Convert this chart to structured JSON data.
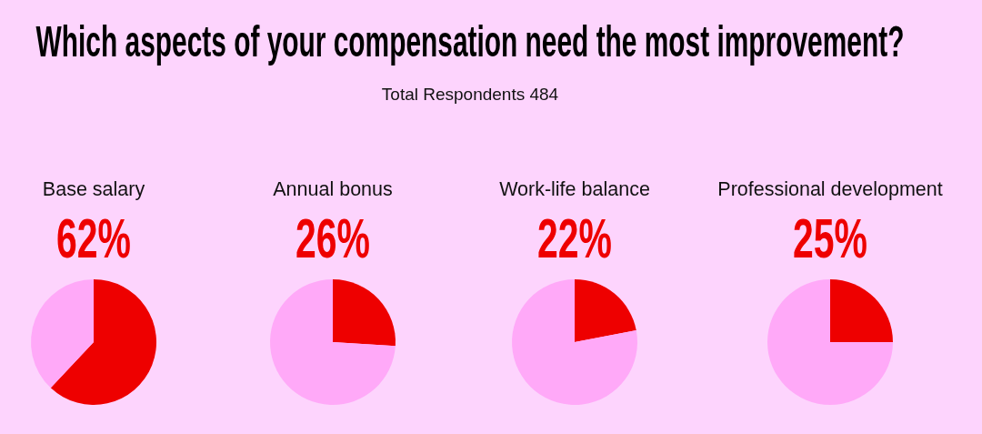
{
  "chart_data": [
    {
      "type": "other",
      "title": "Which aspects of your compensation need the most improvement?",
      "subtitle": "Total Respondents 484"
    },
    {
      "type": "pie",
      "title": "Base salary",
      "categories": [
        null,
        null
      ],
      "values": [
        62,
        38
      ],
      "colors": [
        "#ee0000",
        "#ffa9f8"
      ],
      "value_labels": [
        "62%",
        null
      ]
    },
    {
      "type": "pie",
      "title": "Annual bonus",
      "categories": [
        null,
        null
      ],
      "values": [
        26,
        74
      ],
      "colors": [
        "#ee0000",
        "#ffa9f8"
      ],
      "value_labels": [
        "26%",
        null
      ]
    },
    {
      "type": "pie",
      "title": "Work-life balance",
      "categories": [
        null,
        null
      ],
      "values": [
        22,
        78
      ],
      "colors": [
        "#ee0000",
        "#ffa9f8"
      ],
      "value_labels": [
        "22%",
        null
      ]
    },
    {
      "type": "pie",
      "title": "Professional development",
      "categories": [
        null,
        null
      ],
      "values": [
        25,
        75
      ],
      "colors": [
        "#ee0000",
        "#ffa9f8"
      ],
      "value_labels": [
        "25%",
        null
      ]
    }
  ]
}
